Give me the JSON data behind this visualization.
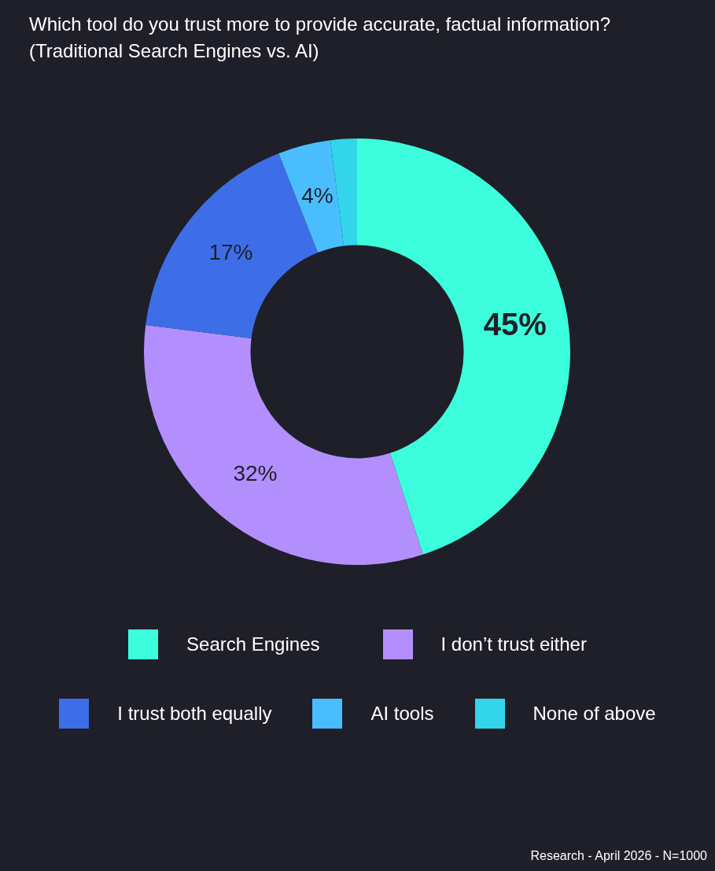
{
  "chart_data": {
    "type": "donut",
    "title": "Which tool do you trust more to provide accurate, factual information?",
    "subtitle": "(Traditional Search Engines vs. AI)",
    "categories": [
      "Search Engines",
      "I don’t trust either",
      "I trust both equally",
      "AI tools",
      "None of above"
    ],
    "values": [
      45,
      32,
      17,
      4,
      2
    ],
    "value_labels": [
      "45%",
      "32%",
      "17%",
      "4%",
      null
    ],
    "colors": [
      "#3cfedc",
      "#b38ffd",
      "#3d6ee8",
      "#4abdfe",
      "#33d5ea"
    ],
    "legend": "bottom",
    "annotations": [
      "Research - April 2026 - N=1000"
    ]
  }
}
